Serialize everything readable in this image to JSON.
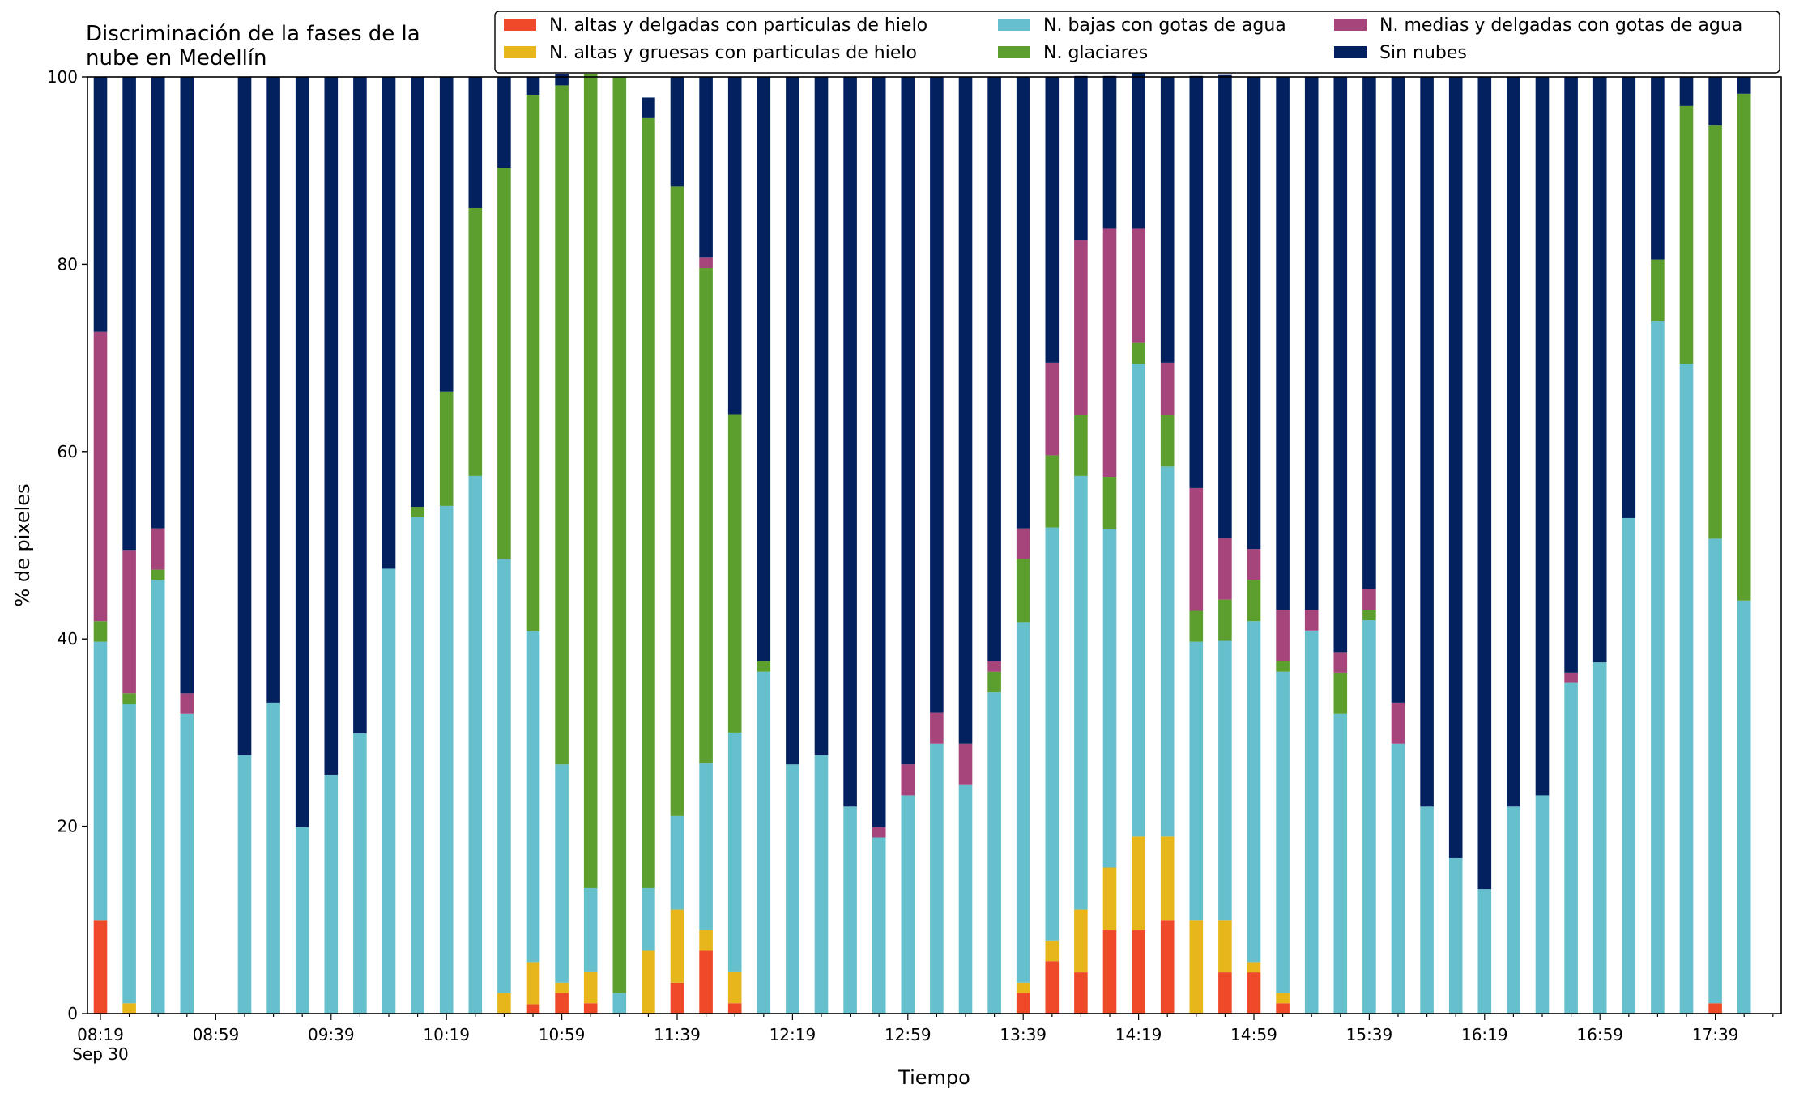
{
  "chart_data": {
    "type": "bar",
    "stacked": true,
    "title": "Discriminación de la fases de la\nnube en Medellín",
    "xlabel": "Tiempo",
    "ylabel": "% de pixeles",
    "ylim": [
      0,
      100
    ],
    "yticks": [
      0,
      20,
      40,
      60,
      80,
      100
    ],
    "x_tick_labels": [
      "08:19\nSep 30",
      "08:59",
      "09:39",
      "10:19",
      "10:59",
      "11:39",
      "12:19",
      "12:59",
      "13:39",
      "14:19",
      "14:59",
      "15:39",
      "16:19",
      "16:59",
      "17:39"
    ],
    "categories": [
      "08:19",
      "08:29",
      "08:39",
      "08:49",
      "08:59",
      "09:09",
      "09:19",
      "09:29",
      "09:39",
      "09:49",
      "09:59",
      "10:09",
      "10:19",
      "10:29",
      "10:39",
      "10:49",
      "10:59",
      "11:09",
      "11:19",
      "11:29",
      "11:39",
      "11:49",
      "11:59",
      "12:09",
      "12:19",
      "12:29",
      "12:39",
      "12:49",
      "12:59",
      "13:09",
      "13:19",
      "13:29",
      "13:39",
      "13:49",
      "13:59",
      "14:09",
      "14:19",
      "14:29",
      "14:39",
      "14:49",
      "14:59",
      "15:09",
      "15:19",
      "15:29",
      "15:39",
      "15:49",
      "15:59",
      "16:09",
      "16:19",
      "16:29",
      "16:39",
      "16:49",
      "16:59",
      "17:09",
      "17:19",
      "17:29",
      "17:39",
      "17:49"
    ],
    "series": [
      {
        "name": "N. altas y delgadas con particulas de hielo",
        "color": "#ee4929",
        "values": [
          10,
          0,
          0,
          0,
          null,
          0,
          0,
          0,
          0,
          0,
          0,
          0,
          0,
          0,
          0,
          1,
          2.2,
          1.1,
          0,
          0,
          3.3,
          6.7,
          1.1,
          0,
          0,
          0,
          0,
          0,
          0,
          0,
          0,
          0,
          2.2,
          5.6,
          4.4,
          8.9,
          8.9,
          10,
          0,
          4.4,
          4.4,
          1.1,
          0,
          0,
          0,
          0,
          0,
          0,
          0,
          0,
          0,
          0,
          0,
          0,
          0,
          0,
          1.1,
          0
        ]
      },
      {
        "name": "N. altas y gruesas con particulas de hielo",
        "color": "#e6b61a",
        "values": [
          0,
          1.1,
          0,
          0,
          null,
          0,
          0,
          0,
          0,
          0,
          0,
          0,
          0,
          0,
          2.2,
          4.5,
          1.1,
          3.4,
          0,
          6.7,
          7.8,
          2.2,
          3.4,
          0,
          0,
          0,
          0,
          0,
          0,
          0,
          0,
          0,
          1.1,
          2.2,
          6.7,
          6.7,
          10,
          8.9,
          10,
          5.6,
          1.1,
          1.1,
          0,
          0,
          0,
          0,
          0,
          0,
          0,
          0,
          0,
          0,
          0,
          0,
          0,
          0,
          0,
          0
        ]
      },
      {
        "name": "N. bajas con gotas de agua",
        "color": "#66bfcc",
        "values": [
          29.7,
          32,
          46.3,
          32,
          null,
          27.6,
          33.2,
          19.9,
          25.5,
          29.9,
          47.5,
          53,
          54.2,
          57.4,
          46.3,
          35.3,
          23.3,
          8.9,
          2.2,
          6.7,
          10,
          17.8,
          25.5,
          36.5,
          26.6,
          27.6,
          22.1,
          18.8,
          23.3,
          28.8,
          24.4,
          34.3,
          38.5,
          44.1,
          46.3,
          36.1,
          50.5,
          39.5,
          29.7,
          29.8,
          36.4,
          34.3,
          40.9,
          32,
          42,
          28.8,
          22.1,
          16.6,
          13.3,
          22.1,
          23.3,
          35.3,
          37.5,
          52.9,
          73.9,
          69.4,
          49.6,
          44.1
        ]
      },
      {
        "name": "N. glaciares",
        "color": "#5c9f2f",
        "values": [
          2.2,
          1.1,
          1.1,
          0,
          null,
          0,
          0,
          0,
          0,
          0,
          0,
          1.1,
          12.2,
          28.6,
          41.8,
          57.3,
          72.5,
          86.9,
          97.8,
          82.2,
          67.2,
          52.9,
          34,
          1.1,
          0,
          0,
          0,
          0,
          0,
          0,
          0,
          2.2,
          6.7,
          7.7,
          6.5,
          5.6,
          2.2,
          5.5,
          3.3,
          4.4,
          4.4,
          1.1,
          0,
          4.4,
          1.1,
          0,
          0,
          0,
          0,
          0,
          0,
          0,
          0,
          0,
          6.6,
          27.5,
          44.1,
          54.1
        ]
      },
      {
        "name": "N. medias y delgadas con gotas de agua",
        "color": "#a6457b",
        "values": [
          30.9,
          15.3,
          4.4,
          2.2,
          null,
          0,
          0,
          0,
          0,
          0,
          0,
          0,
          0,
          0,
          0,
          0,
          0,
          0,
          0,
          0,
          0,
          1.1,
          0,
          0,
          0,
          0,
          0,
          1.1,
          3.3,
          3.3,
          4.4,
          1.1,
          3.3,
          9.9,
          18.7,
          26.5,
          12.2,
          5.6,
          13.1,
          6.6,
          3.3,
          5.5,
          2.2,
          2.2,
          2.2,
          4.4,
          0,
          0,
          0,
          0,
          0,
          1.1,
          0,
          0,
          0,
          0,
          0,
          0
        ]
      },
      {
        "name": "Sin nubes",
        "color": "#04215f",
        "values": [
          27.2,
          50.5,
          48.2,
          65.8,
          null,
          72.4,
          66.8,
          80.1,
          74.5,
          70.1,
          52.5,
          45.9,
          33.6,
          14,
          9.7,
          1.9,
          1.2,
          0,
          0,
          2.2,
          11.7,
          19.3,
          36,
          62.4,
          73.4,
          72.4,
          77.9,
          80.1,
          73.4,
          67.9,
          71.2,
          62.4,
          48.2,
          30.5,
          17.5,
          16.3,
          17.4,
          30.5,
          44,
          49.4,
          50.4,
          56.9,
          56.9,
          61.4,
          54.7,
          66.8,
          77.9,
          83.4,
          86.7,
          77.9,
          76.7,
          63.6,
          62.5,
          47.1,
          19.5,
          3.1,
          5.2,
          1.8
        ]
      }
    ],
    "legend": {
      "placement": "top-right",
      "columns": 3
    }
  }
}
